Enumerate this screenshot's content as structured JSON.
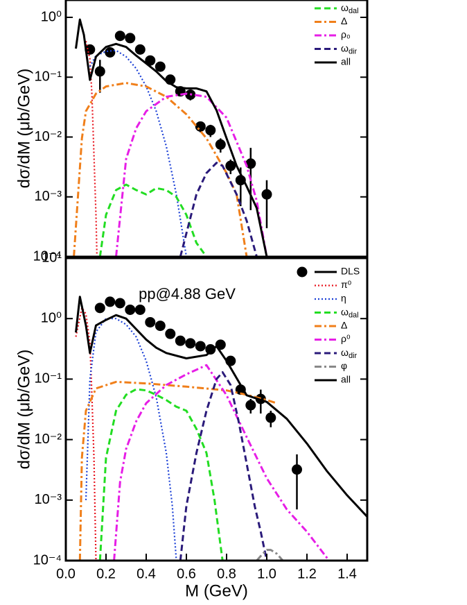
{
  "chart_data": [
    {
      "type": "line",
      "log_y": true,
      "y_label": "dσ/dM (μb/GeV)",
      "xlim": [
        0,
        1.5
      ],
      "ylim": [
        0.0001,
        1.95
      ],
      "yticks": [
        {
          "value": 1,
          "label": "10⁰"
        },
        {
          "value": 0.1,
          "label": "10⁻¹"
        },
        {
          "value": 0.01,
          "label": "10⁻²"
        },
        {
          "value": 0.001,
          "label": "10⁻³"
        },
        {
          "value": 0.0001,
          "label": "10⁻⁴"
        }
      ],
      "series": [
        {
          "style": "markers",
          "color": "#000000",
          "x": [
            0.12,
            0.17,
            0.22,
            0.27,
            0.32,
            0.37,
            0.42,
            0.47,
            0.52,
            0.57,
            0.62,
            0.67,
            0.72,
            0.77,
            0.82,
            0.87,
            0.92,
            1.0
          ],
          "values": [
            0.29,
            0.125,
            0.26,
            0.49,
            0.45,
            0.29,
            0.19,
            0.15,
            0.091,
            0.058,
            0.051,
            0.015,
            0.013,
            0.0075,
            0.0033,
            0.0019,
            0.0036,
            0.0011
          ],
          "errors": [
            0.04,
            0.07,
            0.03,
            0.04,
            0.04,
            0.03,
            0.02,
            0.015,
            0.015,
            0.01,
            0.01,
            0.003,
            0.003,
            0.002,
            0.0009,
            0.0012,
            0.003,
            0.0008
          ]
        },
        {
          "style": "dotted",
          "color": "#e8141e",
          "x": [
            0.1,
            0.12,
            0.13,
            0.14,
            0.15,
            0.155
          ],
          "values": [
            0.4,
            0.2,
            0.05,
            0.005,
            0.0005,
            0.0001
          ]
        },
        {
          "style": "dotted",
          "color": "#1a3fd6",
          "x": [
            0.12,
            0.15,
            0.2,
            0.25,
            0.3,
            0.35,
            0.4,
            0.45,
            0.5,
            0.55,
            0.6
          ],
          "values": [
            0.15,
            0.23,
            0.27,
            0.28,
            0.22,
            0.14,
            0.07,
            0.027,
            0.007,
            0.0011,
            0.0001
          ]
        },
        {
          "name": "ωdal",
          "style": "dashed",
          "color": "#22dd22",
          "x": [
            0.17,
            0.2,
            0.25,
            0.3,
            0.35,
            0.4,
            0.45,
            0.5,
            0.55,
            0.6,
            0.65,
            0.7
          ],
          "values": [
            0.0001,
            0.0005,
            0.0013,
            0.0016,
            0.0013,
            0.0011,
            0.0014,
            0.0013,
            0.001,
            0.0005,
            0.00017,
            0.0001
          ]
        },
        {
          "name": "Δ",
          "style": "dashdot",
          "color": "#f07f1a",
          "x": [
            0.04,
            0.08,
            0.1,
            0.15,
            0.2,
            0.3,
            0.4,
            0.5,
            0.6,
            0.7,
            0.8,
            0.85,
            0.9
          ],
          "values": [
            0.0001,
            0.0095,
            0.027,
            0.053,
            0.07,
            0.08,
            0.07,
            0.047,
            0.024,
            0.0095,
            0.0025,
            0.0011,
            0.0001
          ]
        },
        {
          "name": "ρ₀",
          "style": "dashdot",
          "color": "#e61ee6",
          "x": [
            0.25,
            0.3,
            0.35,
            0.4,
            0.5,
            0.6,
            0.7,
            0.8,
            0.9,
            0.95,
            1.0
          ],
          "values": [
            0.0001,
            0.0043,
            0.014,
            0.027,
            0.047,
            0.053,
            0.047,
            0.021,
            0.0033,
            0.00086,
            0.0001
          ]
        },
        {
          "name": "ωdir",
          "style": "dashed",
          "color": "#2a1a7a",
          "x": [
            0.57,
            0.65,
            0.7,
            0.75,
            0.78,
            0.85,
            0.9,
            0.95
          ],
          "values": [
            0.0001,
            0.0011,
            0.0025,
            0.0037,
            0.0033,
            0.0011,
            0.0004,
            0.0001
          ]
        },
        {
          "name": "all",
          "style": "solid",
          "color": "#000000",
          "x": [
            0.05,
            0.07,
            0.09,
            0.12,
            0.15,
            0.2,
            0.25,
            0.3,
            0.35,
            0.4,
            0.45,
            0.5,
            0.55,
            0.6,
            0.65,
            0.7,
            0.75,
            0.8,
            0.85,
            0.9,
            0.95,
            1.0
          ],
          "values": [
            0.3,
            0.92,
            0.51,
            0.09,
            0.22,
            0.32,
            0.36,
            0.32,
            0.23,
            0.17,
            0.125,
            0.086,
            0.068,
            0.065,
            0.065,
            0.058,
            0.028,
            0.0095,
            0.0033,
            0.0015,
            0.00065,
            0.0001
          ]
        }
      ]
    },
    {
      "type": "line",
      "log_y": true,
      "title": "pp@4.88 GeV",
      "x_label": "M (GeV)",
      "y_label": "dσ/dM (μb/GeV)",
      "xlim": [
        0,
        1.5
      ],
      "ylim": [
        0.0001,
        10
      ],
      "xticks": [
        {
          "value": 0,
          "label": "0.0"
        },
        0.2,
        0.4,
        0.6,
        0.8,
        {
          "value": 1,
          "label": "1.0"
        },
        1.2,
        1.4
      ],
      "yticks": [
        {
          "value": 10,
          "label": "10¹"
        },
        {
          "value": 1,
          "label": "10⁰"
        },
        {
          "value": 0.1,
          "label": "10⁻¹"
        },
        {
          "value": 0.01,
          "label": "10⁻²"
        },
        {
          "value": 0.001,
          "label": "10⁻³"
        },
        {
          "value": 0.0001,
          "label": "10⁻⁴"
        }
      ],
      "series": [
        {
          "name": "DLS",
          "style": "markers",
          "color": "#000000",
          "x": [
            0.17,
            0.22,
            0.27,
            0.32,
            0.37,
            0.42,
            0.47,
            0.52,
            0.57,
            0.62,
            0.67,
            0.72,
            0.77,
            0.82,
            0.87,
            0.92,
            0.97,
            1.02,
            1.15
          ],
          "values": [
            1.5,
            1.9,
            1.8,
            1.4,
            1.4,
            0.87,
            0.76,
            0.56,
            0.43,
            0.39,
            0.35,
            0.31,
            0.37,
            0.2,
            0.067,
            0.037,
            0.047,
            0.023,
            0.0032
          ],
          "errors": [
            0.2,
            0.2,
            0.2,
            0.2,
            0.2,
            0.1,
            0.08,
            0.06,
            0.05,
            0.04,
            0.04,
            0.04,
            0.04,
            0.03,
            0.012,
            0.01,
            0.02,
            0.007,
            0.0025
          ]
        },
        {
          "name": "π⁰",
          "style": "dotted",
          "color": "#e8141e",
          "x": [
            0.05,
            0.08,
            0.1,
            0.12,
            0.13,
            0.14,
            0.15
          ],
          "values": [
            0.5,
            1.5,
            1.2,
            0.4,
            0.05,
            0.005,
            0.0001
          ]
        },
        {
          "name": "η",
          "style": "dotted",
          "color": "#1a3fd6",
          "x": [
            0.1,
            0.12,
            0.15,
            0.2,
            0.25,
            0.3,
            0.35,
            0.4,
            0.45,
            0.5,
            0.53,
            0.55
          ],
          "values": [
            0.001,
            0.1,
            0.6,
            1.0,
            1.0,
            0.8,
            0.5,
            0.2,
            0.05,
            0.006,
            0.0008,
            0.0001
          ]
        },
        {
          "name": "ωdal",
          "style": "dashed",
          "color": "#22dd22",
          "x": [
            0.17,
            0.2,
            0.25,
            0.3,
            0.35,
            0.4,
            0.45,
            0.5,
            0.55,
            0.6,
            0.65,
            0.7,
            0.74,
            0.78
          ],
          "values": [
            0.0001,
            0.005,
            0.03,
            0.055,
            0.068,
            0.065,
            0.055,
            0.045,
            0.035,
            0.03,
            0.015,
            0.006,
            0.001,
            0.0001
          ]
        },
        {
          "name": "Δ",
          "style": "dashdot",
          "color": "#f07f1a",
          "x": [
            0.07,
            0.08,
            0.1,
            0.15,
            0.25,
            0.4,
            0.6,
            0.8,
            0.9,
            1.0,
            1.05
          ],
          "values": [
            0.0001,
            0.005,
            0.03,
            0.07,
            0.09,
            0.085,
            0.075,
            0.065,
            0.055,
            0.045,
            0.04
          ]
        },
        {
          "name": "ρ⁰",
          "style": "dashdot",
          "color": "#e61ee6",
          "x": [
            0.24,
            0.27,
            0.3,
            0.35,
            0.4,
            0.5,
            0.6,
            0.7,
            0.8,
            0.9,
            1.0,
            1.1,
            1.2,
            1.31
          ],
          "values": [
            0.0001,
            0.002,
            0.007,
            0.02,
            0.04,
            0.08,
            0.12,
            0.17,
            0.054,
            0.011,
            0.0023,
            0.0007,
            0.0003,
            0.0001
          ]
        },
        {
          "name": "ωdir",
          "style": "dashed",
          "color": "#2a1a7a",
          "x": [
            0.57,
            0.6,
            0.65,
            0.7,
            0.75,
            0.78,
            0.82,
            0.86,
            0.9,
            0.94,
            0.97,
            1.0
          ],
          "values": [
            0.0001,
            0.0008,
            0.006,
            0.03,
            0.1,
            0.13,
            0.08,
            0.02,
            0.004,
            0.0008,
            0.0003,
            0.0001
          ]
        },
        {
          "name": "φ",
          "style": "dashdot",
          "color": "#888888",
          "x": [
            0.95,
            0.98,
            1.0,
            1.02,
            1.05,
            1.08
          ],
          "values": [
            0.0001,
            0.00013,
            0.00015,
            0.00015,
            0.00013,
            0.0001
          ]
        },
        {
          "name": "all",
          "style": "solid",
          "color": "#000000",
          "x": [
            0.05,
            0.07,
            0.1,
            0.12,
            0.15,
            0.2,
            0.25,
            0.3,
            0.35,
            0.4,
            0.45,
            0.5,
            0.6,
            0.7,
            0.75,
            0.8,
            0.9,
            1.0,
            1.1,
            1.2,
            1.3,
            1.4,
            1.5
          ],
          "values": [
            0.59,
            2.3,
            0.77,
            0.27,
            0.77,
            0.95,
            1.14,
            1.0,
            0.67,
            0.45,
            0.33,
            0.27,
            0.22,
            0.25,
            0.35,
            0.2,
            0.054,
            0.042,
            0.022,
            0.0086,
            0.003,
            0.0012,
            0.00053
          ]
        }
      ]
    }
  ]
}
